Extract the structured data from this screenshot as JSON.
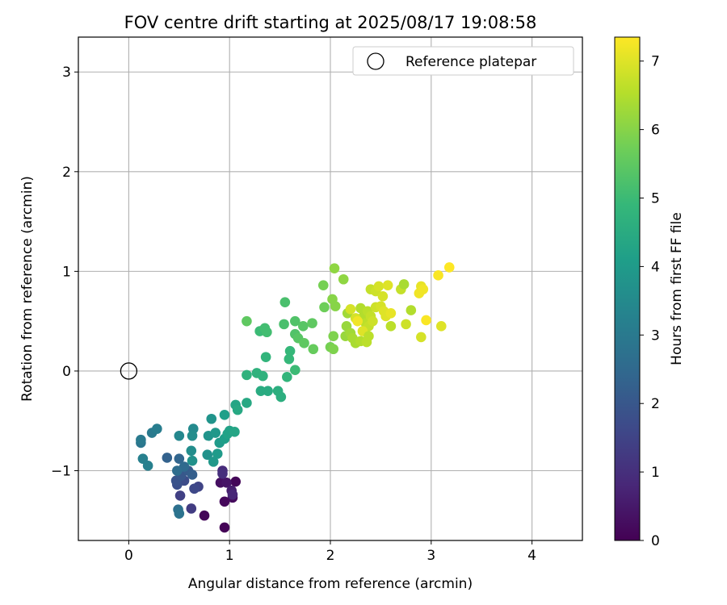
{
  "chart_data": {
    "type": "scatter",
    "title": "FOV centre drift starting at 2025/08/17 19:08:58",
    "xlabel": "Angular distance from reference (arcmin)",
    "ylabel": "Rotation from reference (arcmin)",
    "xlim": [
      -0.5,
      4.5
    ],
    "ylim": [
      -1.7,
      3.35
    ],
    "x_ticks": [
      0,
      1,
      2,
      3,
      4
    ],
    "y_ticks": [
      -1,
      0,
      1,
      2,
      3
    ],
    "x_tick_labels": [
      "0",
      "1",
      "2",
      "3",
      "4"
    ],
    "y_tick_labels": [
      "−1",
      "0",
      "1",
      "2",
      "3"
    ],
    "grid": true,
    "legend": {
      "placement": "top-right",
      "entries": [
        "Reference platepar"
      ]
    },
    "reference_point": {
      "name": "Reference platepar",
      "x": 0,
      "y": 0
    },
    "colorbar": {
      "label": "Hours from first FF file",
      "colormap": "viridis",
      "range": [
        0,
        7.35
      ],
      "ticks": [
        0,
        1,
        2,
        3,
        4,
        5,
        6,
        7
      ],
      "tick_labels": [
        "0",
        "1",
        "2",
        "3",
        "4",
        "5",
        "6",
        "7"
      ]
    },
    "series": [
      {
        "color_value_unit": "hours",
        "points": [
          {
            "x": 0.75,
            "y": -1.45,
            "c": 0.1
          },
          {
            "x": 0.95,
            "y": -1.57,
            "c": 0.05
          },
          {
            "x": 0.95,
            "y": -1.31,
            "c": 0.15
          },
          {
            "x": 1.03,
            "y": -1.27,
            "c": 0.2
          },
          {
            "x": 1.06,
            "y": -1.11,
            "c": 0.1
          },
          {
            "x": 0.91,
            "y": -1.12,
            "c": 0.3
          },
          {
            "x": 0.97,
            "y": -1.12,
            "c": 0.4
          },
          {
            "x": 1.02,
            "y": -1.2,
            "c": 0.6
          },
          {
            "x": 1.03,
            "y": -1.24,
            "c": 0.8
          },
          {
            "x": 0.93,
            "y": -1.0,
            "c": 0.9
          },
          {
            "x": 0.93,
            "y": -1.03,
            "c": 1.0
          },
          {
            "x": 0.62,
            "y": -1.38,
            "c": 1.3
          },
          {
            "x": 0.51,
            "y": -1.25,
            "c": 1.4
          },
          {
            "x": 0.69,
            "y": -1.16,
            "c": 1.5
          },
          {
            "x": 0.65,
            "y": -1.18,
            "c": 1.6
          },
          {
            "x": 0.55,
            "y": -1.1,
            "c": 1.7
          },
          {
            "x": 0.48,
            "y": -1.14,
            "c": 1.8
          },
          {
            "x": 0.47,
            "y": -1.1,
            "c": 1.9
          },
          {
            "x": 0.52,
            "y": -1.05,
            "c": 2.0
          },
          {
            "x": 0.59,
            "y": -1.0,
            "c": 2.1
          },
          {
            "x": 0.63,
            "y": -1.04,
            "c": 2.2
          },
          {
            "x": 0.38,
            "y": -0.87,
            "c": 2.3
          },
          {
            "x": 0.5,
            "y": -0.88,
            "c": 2.4
          },
          {
            "x": 0.55,
            "y": -0.96,
            "c": 2.5
          },
          {
            "x": 0.48,
            "y": -1.0,
            "c": 2.6
          },
          {
            "x": 0.49,
            "y": -1.39,
            "c": 2.7
          },
          {
            "x": 0.5,
            "y": -1.43,
            "c": 2.8
          },
          {
            "x": 0.12,
            "y": -0.72,
            "c": 2.9
          },
          {
            "x": 0.12,
            "y": -0.69,
            "c": 3.0
          },
          {
            "x": 0.23,
            "y": -0.62,
            "c": 3.0
          },
          {
            "x": 0.28,
            "y": -0.58,
            "c": 3.1
          },
          {
            "x": 0.14,
            "y": -0.88,
            "c": 3.2
          },
          {
            "x": 0.19,
            "y": -0.95,
            "c": 3.2
          },
          {
            "x": 0.5,
            "y": -0.65,
            "c": 3.4
          },
          {
            "x": 0.64,
            "y": -0.58,
            "c": 3.5
          },
          {
            "x": 0.63,
            "y": -0.65,
            "c": 3.6
          },
          {
            "x": 0.62,
            "y": -0.8,
            "c": 3.6
          },
          {
            "x": 0.63,
            "y": -0.9,
            "c": 3.7
          },
          {
            "x": 0.78,
            "y": -0.84,
            "c": 3.7
          },
          {
            "x": 0.79,
            "y": -0.65,
            "c": 3.8
          },
          {
            "x": 0.82,
            "y": -0.48,
            "c": 3.8
          },
          {
            "x": 0.86,
            "y": -0.62,
            "c": 3.9
          },
          {
            "x": 0.84,
            "y": -0.91,
            "c": 3.9
          },
          {
            "x": 0.88,
            "y": -0.83,
            "c": 4.0
          },
          {
            "x": 0.9,
            "y": -0.72,
            "c": 4.0
          },
          {
            "x": 0.95,
            "y": -0.68,
            "c": 4.1
          },
          {
            "x": 0.95,
            "y": -0.44,
            "c": 4.1
          },
          {
            "x": 0.98,
            "y": -0.63,
            "c": 4.2
          },
          {
            "x": 1.0,
            "y": -0.6,
            "c": 4.2
          },
          {
            "x": 1.05,
            "y": -0.61,
            "c": 4.3
          },
          {
            "x": 1.06,
            "y": -0.34,
            "c": 4.3
          },
          {
            "x": 1.08,
            "y": -0.39,
            "c": 4.4
          },
          {
            "x": 1.17,
            "y": -0.32,
            "c": 4.4
          },
          {
            "x": 1.31,
            "y": -0.2,
            "c": 4.5
          },
          {
            "x": 1.38,
            "y": -0.2,
            "c": 4.5
          },
          {
            "x": 1.48,
            "y": -0.2,
            "c": 4.6
          },
          {
            "x": 1.51,
            "y": -0.26,
            "c": 4.6
          },
          {
            "x": 1.17,
            "y": -0.04,
            "c": 4.7
          },
          {
            "x": 1.27,
            "y": -0.02,
            "c": 4.7
          },
          {
            "x": 1.33,
            "y": -0.05,
            "c": 4.7
          },
          {
            "x": 1.36,
            "y": 0.14,
            "c": 4.8
          },
          {
            "x": 1.57,
            "y": -0.06,
            "c": 4.8
          },
          {
            "x": 1.59,
            "y": 0.12,
            "c": 4.9
          },
          {
            "x": 1.6,
            "y": 0.2,
            "c": 4.9
          },
          {
            "x": 1.65,
            "y": 0.01,
            "c": 5.0
          },
          {
            "x": 1.3,
            "y": 0.4,
            "c": 5.0
          },
          {
            "x": 1.35,
            "y": 0.43,
            "c": 5.1
          },
          {
            "x": 1.37,
            "y": 0.39,
            "c": 5.1
          },
          {
            "x": 1.54,
            "y": 0.47,
            "c": 5.2
          },
          {
            "x": 1.55,
            "y": 0.69,
            "c": 5.2
          },
          {
            "x": 1.65,
            "y": 0.5,
            "c": 5.3
          },
          {
            "x": 1.65,
            "y": 0.37,
            "c": 5.3
          },
          {
            "x": 1.68,
            "y": 0.33,
            "c": 5.4
          },
          {
            "x": 1.73,
            "y": 0.45,
            "c": 5.4
          },
          {
            "x": 1.74,
            "y": 0.28,
            "c": 5.5
          },
          {
            "x": 1.82,
            "y": 0.48,
            "c": 5.5
          },
          {
            "x": 1.83,
            "y": 0.22,
            "c": 5.6
          },
          {
            "x": 1.17,
            "y": 0.5,
            "c": 5.5
          },
          {
            "x": 1.94,
            "y": 0.64,
            "c": 5.7
          },
          {
            "x": 1.93,
            "y": 0.86,
            "c": 5.8
          },
          {
            "x": 2.0,
            "y": 0.24,
            "c": 5.8
          },
          {
            "x": 2.03,
            "y": 0.22,
            "c": 5.9
          },
          {
            "x": 2.03,
            "y": 0.35,
            "c": 5.9
          },
          {
            "x": 2.02,
            "y": 0.72,
            "c": 6.0
          },
          {
            "x": 2.05,
            "y": 0.65,
            "c": 6.0
          },
          {
            "x": 2.04,
            "y": 1.03,
            "c": 6.1
          },
          {
            "x": 2.13,
            "y": 0.92,
            "c": 6.1
          },
          {
            "x": 2.15,
            "y": 0.35,
            "c": 6.2
          },
          {
            "x": 2.16,
            "y": 0.45,
            "c": 6.2
          },
          {
            "x": 2.17,
            "y": 0.58,
            "c": 6.3
          },
          {
            "x": 2.2,
            "y": 0.38,
            "c": 6.3
          },
          {
            "x": 2.22,
            "y": 0.33,
            "c": 6.4
          },
          {
            "x": 2.25,
            "y": 0.28,
            "c": 6.4
          },
          {
            "x": 2.3,
            "y": 0.3,
            "c": 6.5
          },
          {
            "x": 2.3,
            "y": 0.63,
            "c": 6.5
          },
          {
            "x": 2.33,
            "y": 0.55,
            "c": 6.5
          },
          {
            "x": 2.35,
            "y": 0.48,
            "c": 6.6
          },
          {
            "x": 2.36,
            "y": 0.29,
            "c": 6.6
          },
          {
            "x": 2.37,
            "y": 0.6,
            "c": 6.6
          },
          {
            "x": 2.38,
            "y": 0.45,
            "c": 6.7
          },
          {
            "x": 2.4,
            "y": 0.55,
            "c": 6.7
          },
          {
            "x": 2.4,
            "y": 0.82,
            "c": 6.7
          },
          {
            "x": 2.42,
            "y": 0.5,
            "c": 6.8
          },
          {
            "x": 2.45,
            "y": 0.64,
            "c": 6.8
          },
          {
            "x": 2.45,
            "y": 0.8,
            "c": 6.8
          },
          {
            "x": 2.48,
            "y": 0.85,
            "c": 6.9
          },
          {
            "x": 2.5,
            "y": 0.65,
            "c": 6.9
          },
          {
            "x": 2.52,
            "y": 0.75,
            "c": 6.9
          },
          {
            "x": 2.53,
            "y": 0.6,
            "c": 7.0
          },
          {
            "x": 2.55,
            "y": 0.55,
            "c": 7.0
          },
          {
            "x": 2.57,
            "y": 0.86,
            "c": 7.0
          },
          {
            "x": 2.6,
            "y": 0.58,
            "c": 7.1
          },
          {
            "x": 2.6,
            "y": 0.45,
            "c": 6.6
          },
          {
            "x": 2.7,
            "y": 0.82,
            "c": 6.7
          },
          {
            "x": 2.73,
            "y": 0.87,
            "c": 6.4
          },
          {
            "x": 2.75,
            "y": 0.47,
            "c": 6.8
          },
          {
            "x": 2.8,
            "y": 0.61,
            "c": 6.5
          },
          {
            "x": 2.88,
            "y": 0.78,
            "c": 7.2
          },
          {
            "x": 2.9,
            "y": 0.85,
            "c": 7.1
          },
          {
            "x": 2.9,
            "y": 0.34,
            "c": 6.9
          },
          {
            "x": 2.92,
            "y": 0.82,
            "c": 7.2
          },
          {
            "x": 2.95,
            "y": 0.51,
            "c": 7.3
          },
          {
            "x": 3.07,
            "y": 0.96,
            "c": 7.3
          },
          {
            "x": 3.1,
            "y": 0.45,
            "c": 7.0
          },
          {
            "x": 3.18,
            "y": 1.04,
            "c": 7.35
          },
          {
            "x": 2.25,
            "y": 0.53,
            "c": 6.9
          },
          {
            "x": 2.32,
            "y": 0.4,
            "c": 7.0
          },
          {
            "x": 2.38,
            "y": 0.35,
            "c": 6.6
          },
          {
            "x": 2.27,
            "y": 0.5,
            "c": 7.2
          },
          {
            "x": 2.2,
            "y": 0.62,
            "c": 6.9
          }
        ]
      }
    ]
  }
}
